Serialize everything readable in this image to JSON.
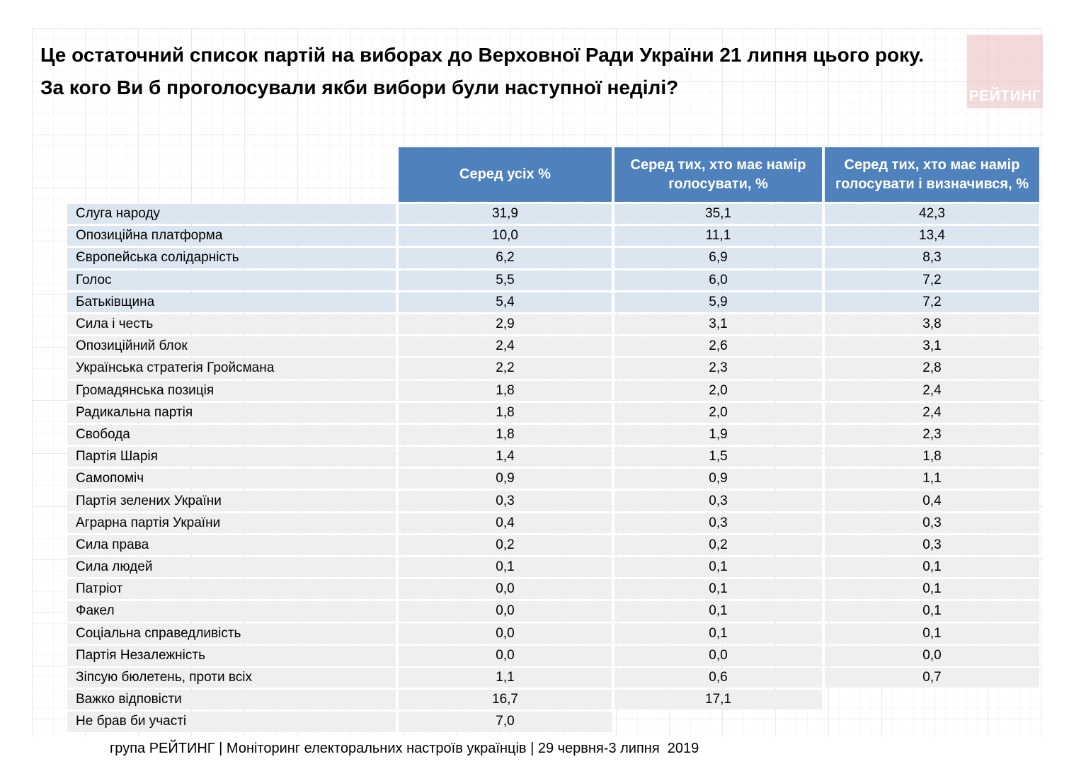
{
  "title": {
    "line1": "Це остаточний список партій на виборах до Верховної Ради України 21 липня цього року.",
    "line2": "За кого Ви б проголосували якби вибори були наступної неділі?"
  },
  "logo": {
    "text": "РЕЙТИНГ"
  },
  "colors": {
    "header_blue": "#4f81bd",
    "row_light_blue": "#dce6f1",
    "row_light_gray": "#efefef",
    "logo_pink": "#eed6d4"
  },
  "table": {
    "columns": [
      "Серед усіх %",
      "Серед тих, хто має намір голосувати, %",
      "Серед тих, хто має намір голосувати і визначився, %"
    ],
    "rows": [
      {
        "label": "Слуга народу",
        "values": [
          "31,9",
          "35,1",
          "42,3"
        ],
        "highlight": true
      },
      {
        "label": "Опозиційна платформа",
        "values": [
          "10,0",
          "11,1",
          "13,4"
        ],
        "highlight": true
      },
      {
        "label": "Європейська солідарність",
        "values": [
          "6,2",
          "6,9",
          "8,3"
        ],
        "highlight": true
      },
      {
        "label": "Голос",
        "values": [
          "5,5",
          "6,0",
          "7,2"
        ],
        "highlight": true
      },
      {
        "label": "Батьківщина",
        "values": [
          "5,4",
          "5,9",
          "7,2"
        ],
        "highlight": true
      },
      {
        "label": "Сила і честь",
        "values": [
          "2,9",
          "3,1",
          "3,8"
        ],
        "highlight": false
      },
      {
        "label": "Опозиційний блок",
        "values": [
          "2,4",
          "2,6",
          "3,1"
        ],
        "highlight": false
      },
      {
        "label": "Українська стратегія Гройсмана",
        "values": [
          "2,2",
          "2,3",
          "2,8"
        ],
        "highlight": false
      },
      {
        "label": "Громадянська позиція",
        "values": [
          "1,8",
          "2,0",
          "2,4"
        ],
        "highlight": false
      },
      {
        "label": "Радикальна партія",
        "values": [
          "1,8",
          "2,0",
          "2,4"
        ],
        "highlight": false
      },
      {
        "label": "Свобода",
        "values": [
          "1,8",
          "1,9",
          "2,3"
        ],
        "highlight": false
      },
      {
        "label": "Партія Шарія",
        "values": [
          "1,4",
          "1,5",
          "1,8"
        ],
        "highlight": false
      },
      {
        "label": "Самопоміч",
        "values": [
          "0,9",
          "0,9",
          "1,1"
        ],
        "highlight": false
      },
      {
        "label": "Партія зелених України",
        "values": [
          "0,3",
          "0,3",
          "0,4"
        ],
        "highlight": false
      },
      {
        "label": "Аграрна партія України",
        "values": [
          "0,4",
          "0,3",
          "0,3"
        ],
        "highlight": false
      },
      {
        "label": "Сила права",
        "values": [
          "0,2",
          "0,2",
          "0,3"
        ],
        "highlight": false
      },
      {
        "label": "Сила людей",
        "values": [
          "0,1",
          "0,1",
          "0,1"
        ],
        "highlight": false
      },
      {
        "label": "Патріот",
        "values": [
          "0,0",
          "0,1",
          "0,1"
        ],
        "highlight": false
      },
      {
        "label": "Факел",
        "values": [
          "0,0",
          "0,1",
          "0,1"
        ],
        "highlight": false
      },
      {
        "label": "Соціальна справедливість",
        "values": [
          "0,0",
          "0,1",
          "0,1"
        ],
        "highlight": false
      },
      {
        "label": "Партія Незалежність",
        "values": [
          "0,0",
          "0,0",
          "0,0"
        ],
        "highlight": false
      },
      {
        "label": "Зіпсую бюлетень, проти всіх",
        "values": [
          "1,1",
          "0,6",
          "0,7"
        ],
        "highlight": false
      },
      {
        "label": "Важко відповісти",
        "values": [
          "16,7",
          "17,1",
          null
        ],
        "highlight": false
      },
      {
        "label": "Не брав би участі",
        "values": [
          "7,0",
          null,
          null
        ],
        "highlight": false
      }
    ]
  },
  "footer": {
    "text": "група РЕЙТИНГ | Моніторинг електоральних настроїв українців | 29 червня-3 липня  2019"
  },
  "chart_data": {
    "type": "table",
    "title": "Це остаточний список партій на виборах до Верховної Ради України 21 липня цього року. За кого Ви б проголосували якби вибори були наступної неділі?",
    "categories": [
      "Слуга народу",
      "Опозиційна платформа",
      "Європейська солідарність",
      "Голос",
      "Батьківщина",
      "Сила і честь",
      "Опозиційний блок",
      "Українська стратегія Гройсмана",
      "Громадянська позиція",
      "Радикальна партія",
      "Свобода",
      "Партія Шарія",
      "Самопоміч",
      "Партія зелених України",
      "Аграрна партія України",
      "Сила права",
      "Сила людей",
      "Патріот",
      "Факел",
      "Соціальна справедливість",
      "Партія Незалежність",
      "Зіпсую бюлетень, проти всіх",
      "Важко відповісти",
      "Не брав би участі"
    ],
    "series": [
      {
        "name": "Серед усіх %",
        "values": [
          31.9,
          10.0,
          6.2,
          5.5,
          5.4,
          2.9,
          2.4,
          2.2,
          1.8,
          1.8,
          1.8,
          1.4,
          0.9,
          0.3,
          0.4,
          0.2,
          0.1,
          0.0,
          0.0,
          0.0,
          0.0,
          1.1,
          16.7,
          7.0
        ]
      },
      {
        "name": "Серед тих, хто має намір голосувати, %",
        "values": [
          35.1,
          11.1,
          6.9,
          6.0,
          5.9,
          3.1,
          2.6,
          2.3,
          2.0,
          2.0,
          1.9,
          1.5,
          0.9,
          0.3,
          0.3,
          0.2,
          0.1,
          0.1,
          0.1,
          0.1,
          0.0,
          0.6,
          17.1,
          null
        ]
      },
      {
        "name": "Серед тих, хто має намір голосувати і визначився, %",
        "values": [
          42.3,
          13.4,
          8.3,
          7.2,
          7.2,
          3.8,
          3.1,
          2.8,
          2.4,
          2.4,
          2.3,
          1.8,
          1.1,
          0.4,
          0.3,
          0.3,
          0.1,
          0.1,
          0.1,
          0.1,
          0.0,
          0.7,
          null,
          null
        ]
      }
    ],
    "legend_position": "none",
    "grid": false
  }
}
